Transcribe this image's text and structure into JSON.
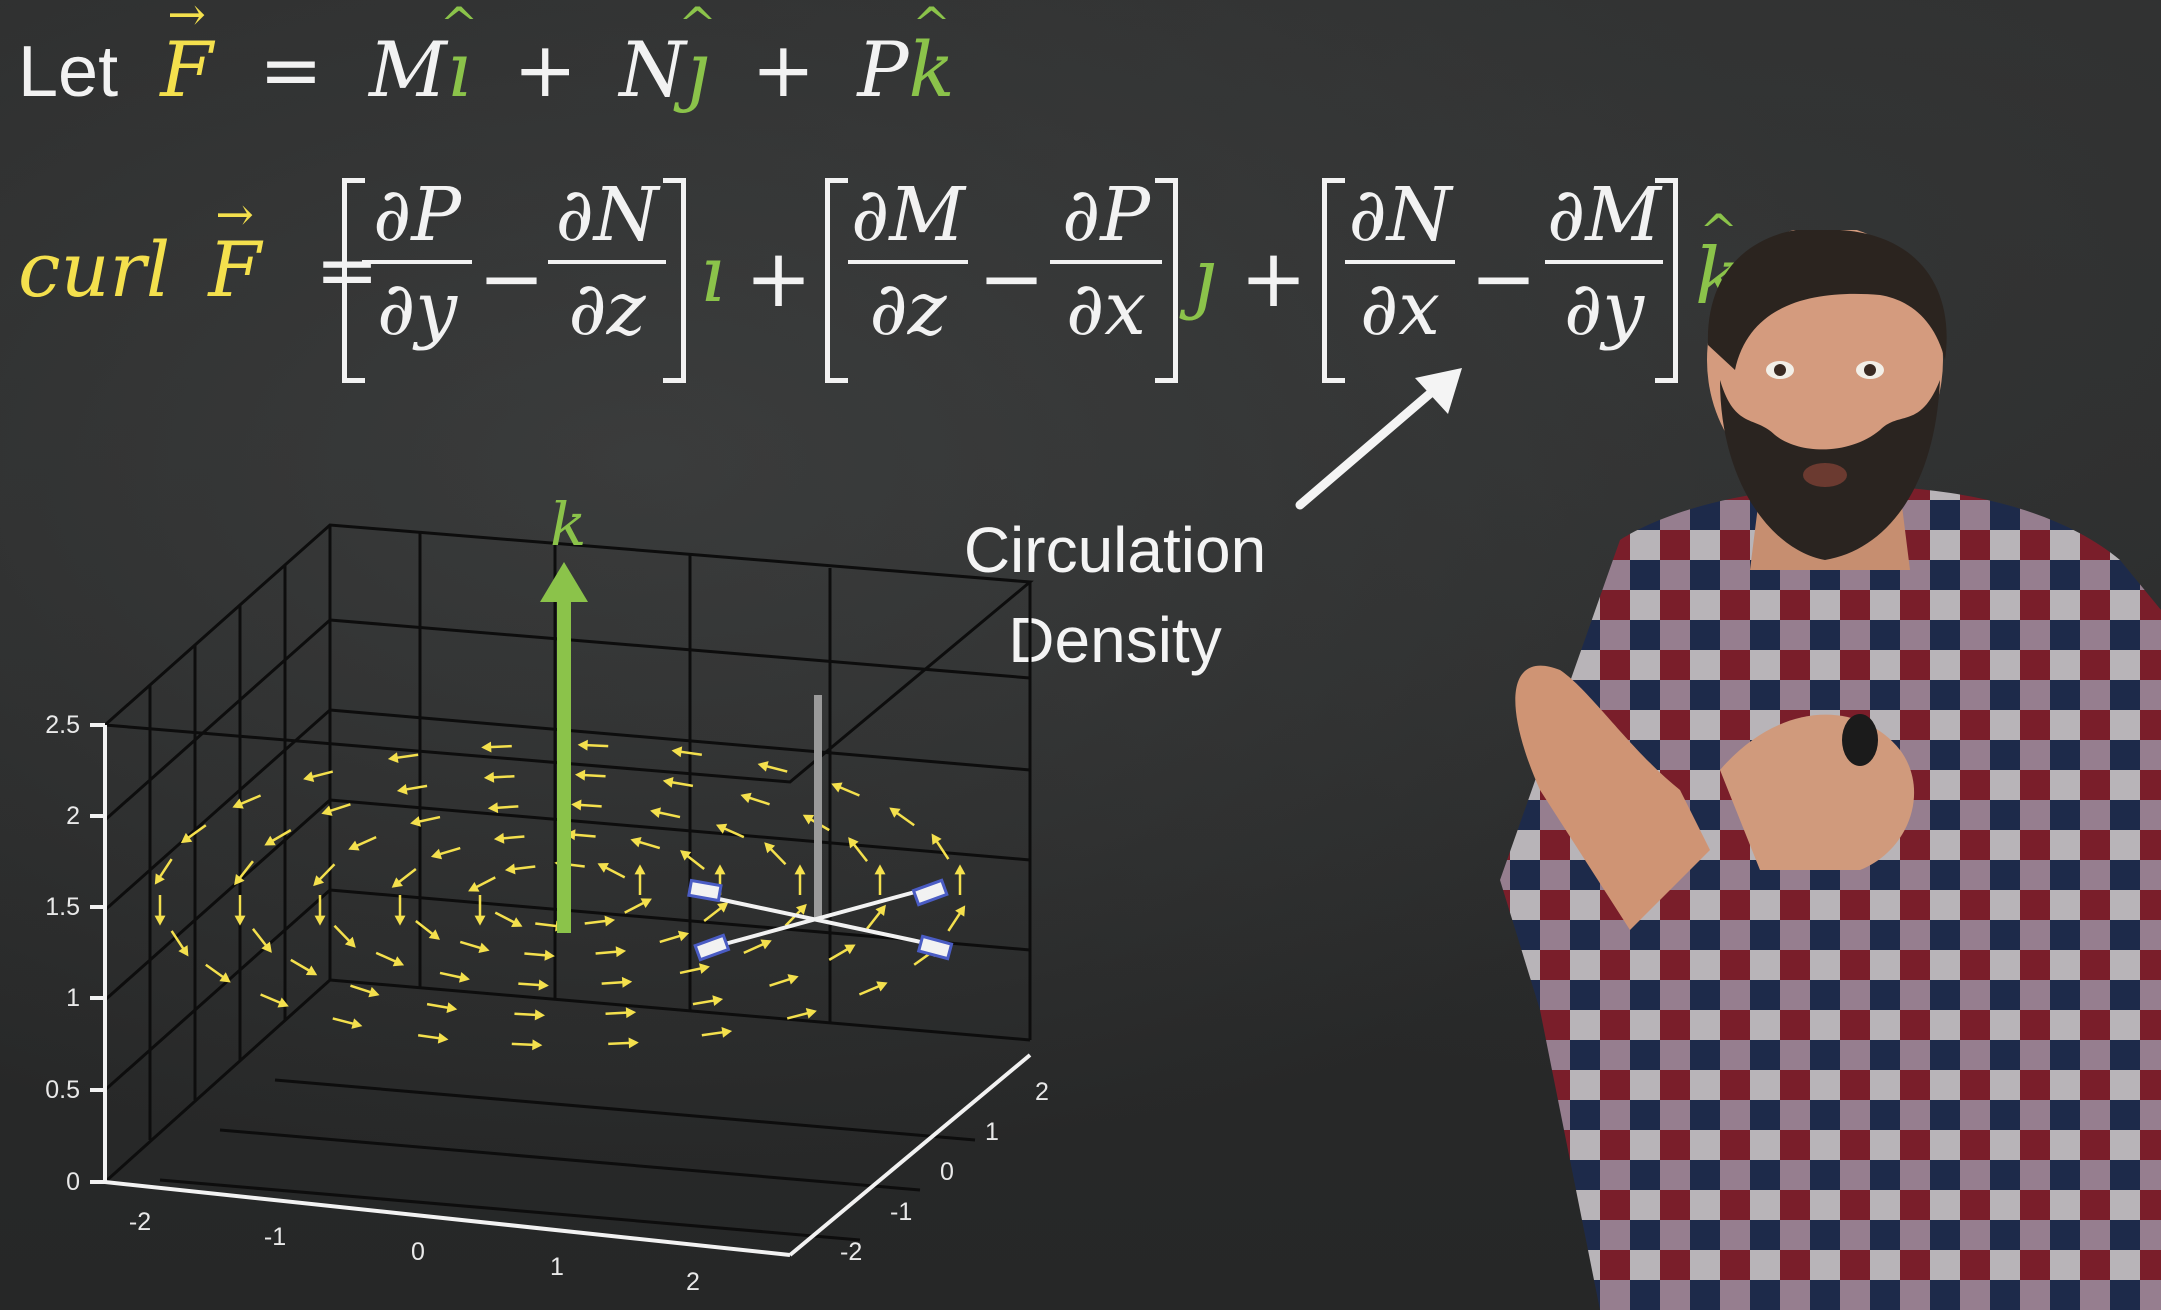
{
  "equations": {
    "let_word": "Let",
    "F": "F",
    "equals": "=",
    "M": "M",
    "i": "ı",
    "plus": "+",
    "N": "N",
    "j": "ȷ",
    "P": "P",
    "k": "k",
    "curl_word": "curl",
    "minus": "−",
    "terms": [
      {
        "num1": "∂P",
        "den1": "∂y",
        "num2": "∂N",
        "den2": "∂z",
        "unit": "ı"
      },
      {
        "num1": "∂M",
        "den1": "∂z",
        "num2": "∂P",
        "den2": "∂x",
        "unit": "ȷ"
      },
      {
        "num1": "∂N",
        "den1": "∂x",
        "num2": "∂M",
        "den2": "∂y",
        "unit": "k"
      }
    ]
  },
  "annotation": {
    "line1": "Circulation",
    "line2": "Density"
  },
  "plot": {
    "k_label": "k",
    "z_ticks": [
      "0",
      "0.5",
      "1",
      "1.5",
      "2",
      "2.5"
    ],
    "x_ticks": [
      "-2",
      "-1",
      "0",
      "1",
      "2"
    ],
    "y_ticks": [
      "-2",
      "-1",
      "0",
      "1",
      "2"
    ]
  },
  "colors": {
    "vector": "#f4e04d",
    "unit_vector": "#8bc34a",
    "chalk": "#f2f2f2",
    "board": "#2a2b2b"
  }
}
